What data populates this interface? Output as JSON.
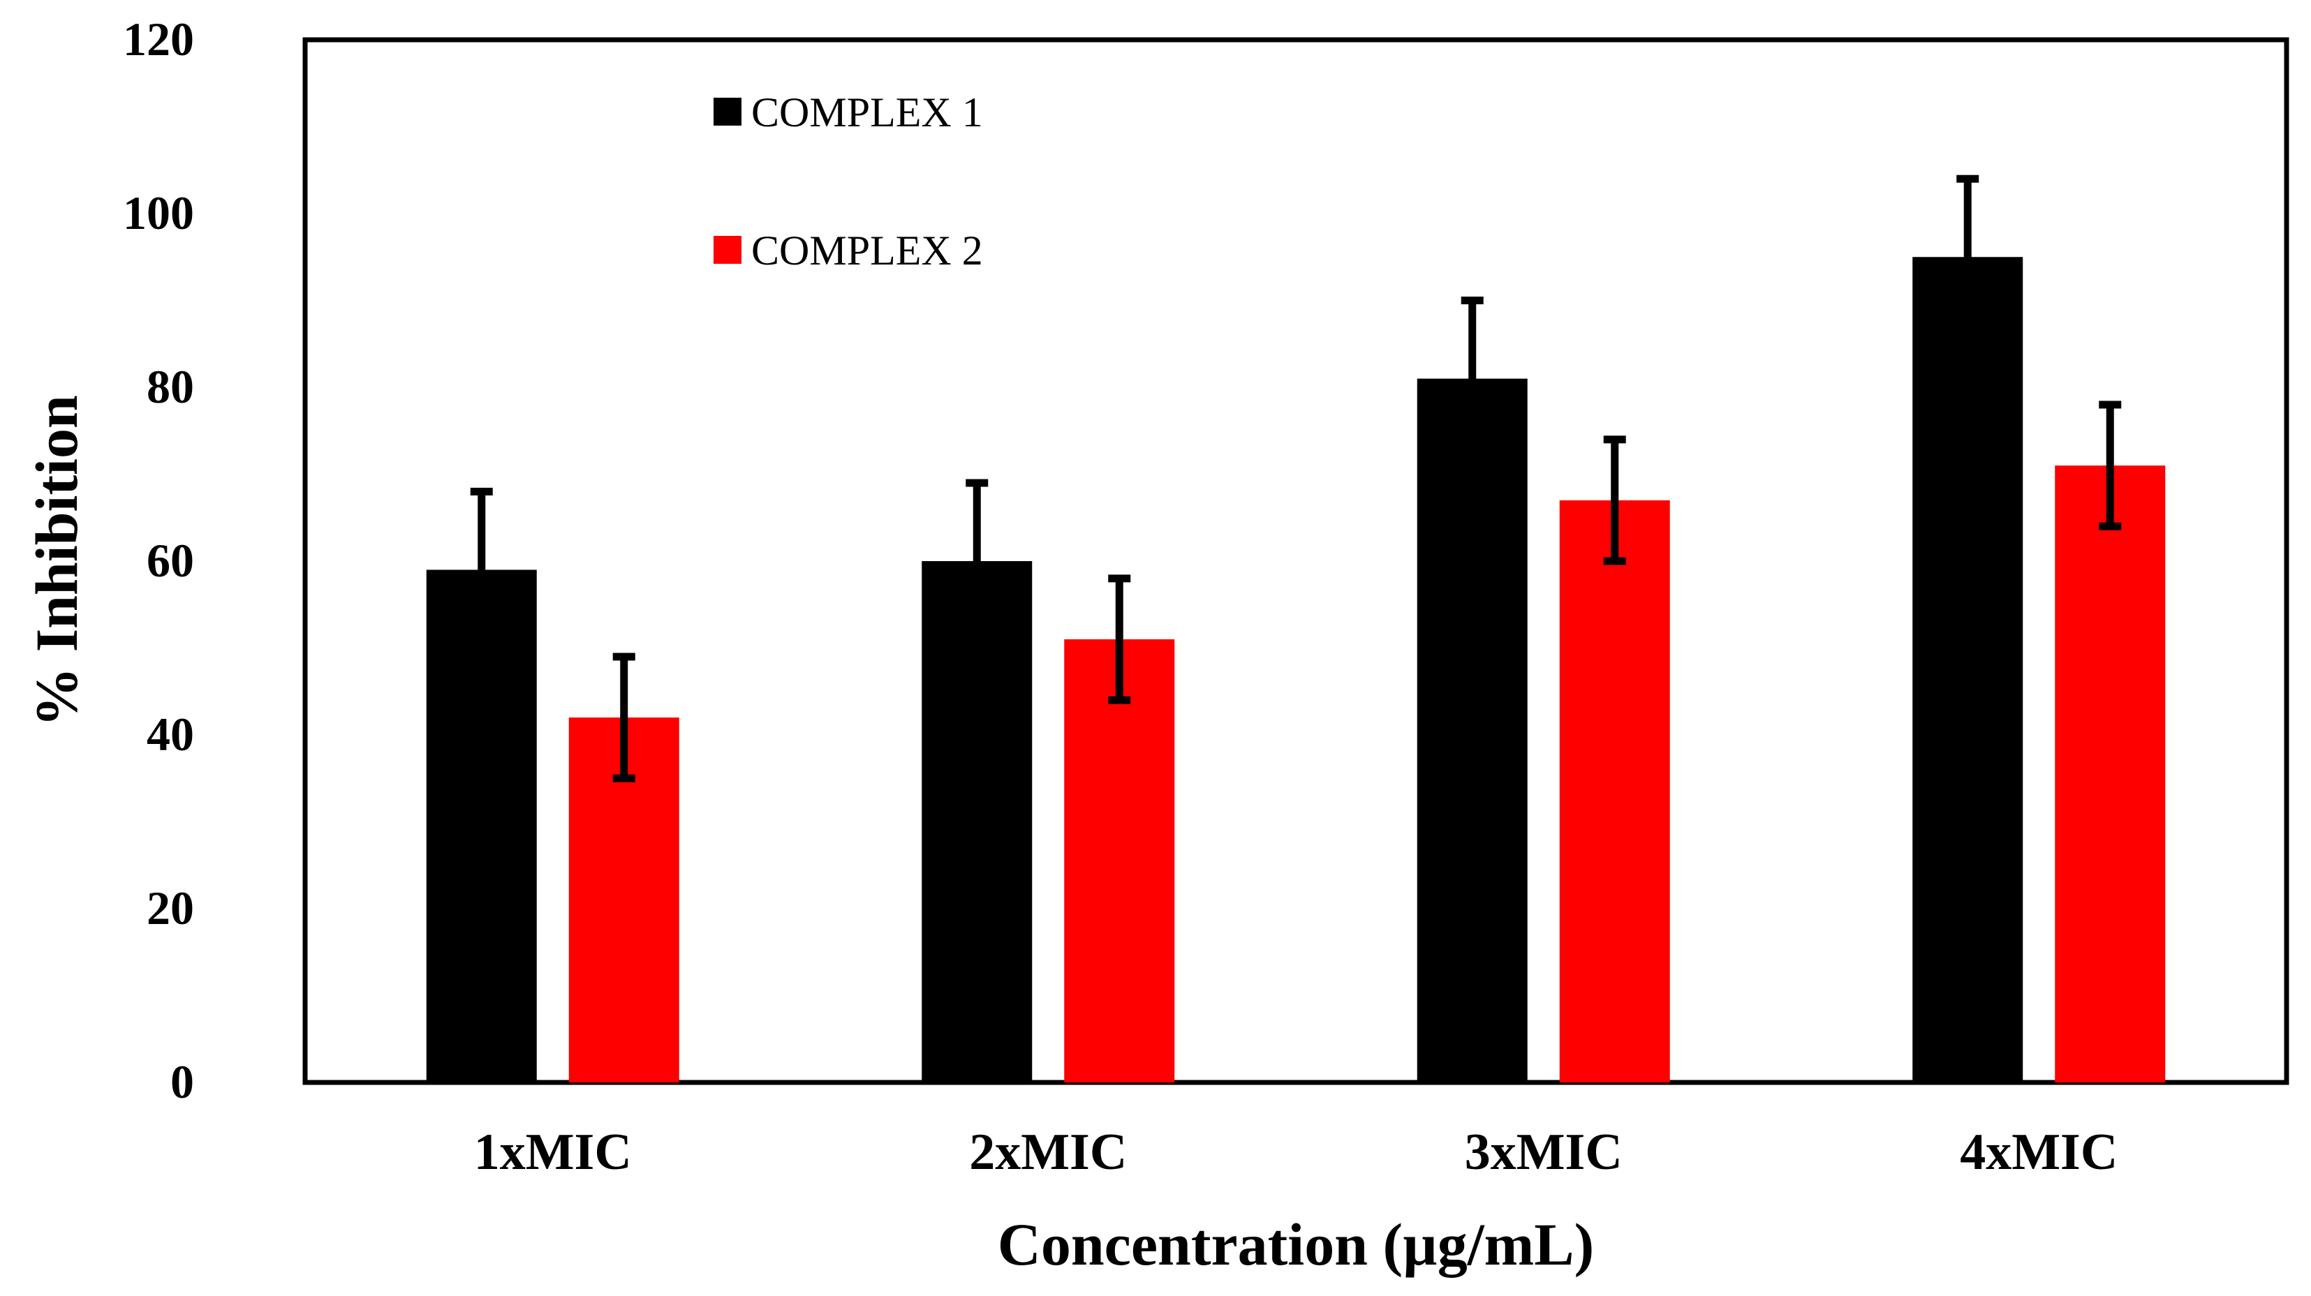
{
  "chart_data": {
    "type": "bar",
    "title": "",
    "xlabel": "Concentration (µg/mL)",
    "ylabel": "% Inhibition",
    "ylim": [
      0,
      120
    ],
    "yticks": [
      0,
      20,
      40,
      60,
      80,
      100,
      120
    ],
    "grid": false,
    "legend_position": "top-left",
    "categories": [
      "1xMIC",
      "2xMIC",
      "3xMIC",
      "4xMIC"
    ],
    "series": [
      {
        "name": "COMPLEX 1",
        "color": "#000000",
        "values": [
          59,
          60,
          81,
          95
        ],
        "errors": [
          9,
          9,
          9,
          9
        ]
      },
      {
        "name": "COMPLEX 2",
        "color": "#ff0000",
        "values": [
          42,
          51,
          67,
          71
        ],
        "errors": [
          7,
          7,
          7,
          7
        ]
      }
    ]
  }
}
